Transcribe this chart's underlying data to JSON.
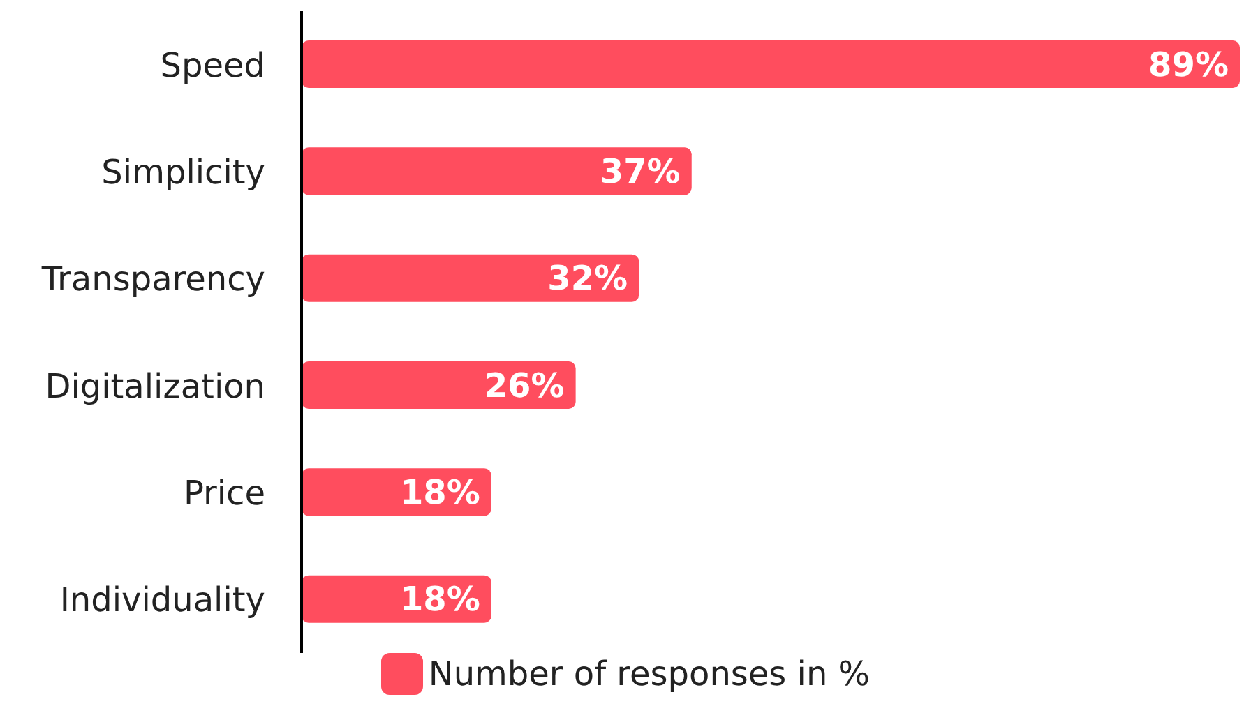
{
  "chart_data": {
    "type": "bar",
    "orientation": "horizontal",
    "categories": [
      "Speed",
      "Simplicity",
      "Transparency",
      "Digitalization",
      "Price",
      "Individuality"
    ],
    "series": [
      {
        "name": "Number of responses in %",
        "color": "#ff4d5e",
        "values": [
          89,
          37,
          32,
          26,
          18,
          18
        ],
        "value_labels": [
          "89%",
          "37%",
          "32%",
          "26%",
          "18%",
          "18%"
        ]
      }
    ],
    "legend": "bottom",
    "grid": false
  }
}
